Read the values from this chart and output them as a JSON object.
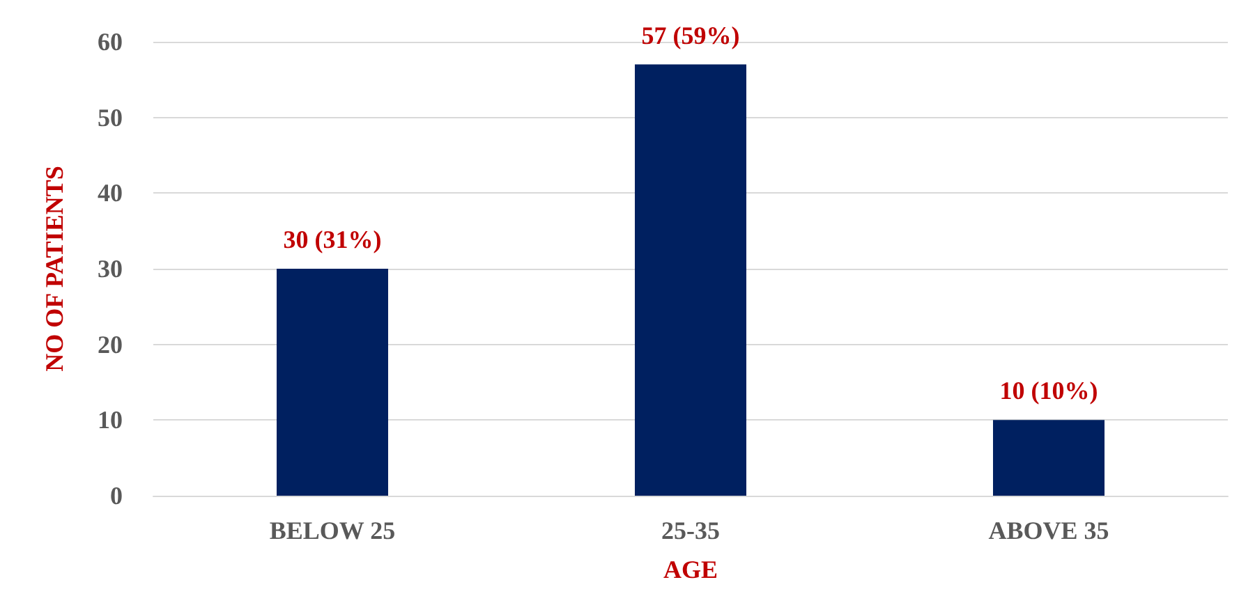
{
  "chart_data": {
    "type": "bar",
    "xlabel": "AGE",
    "ylabel": "NO OF PATIENTS",
    "categories": [
      "BELOW 25",
      "25-35",
      "ABOVE 35"
    ],
    "values": [
      30,
      57,
      10
    ],
    "color": "#002060",
    "value_labels": [
      "30 (31%)",
      "57 (59%)",
      "10 (10%)"
    ],
    "ylim": [
      0,
      60
    ],
    "yticks": [
      0,
      10,
      20,
      30,
      40,
      50,
      60
    ],
    "grid": "y"
  }
}
